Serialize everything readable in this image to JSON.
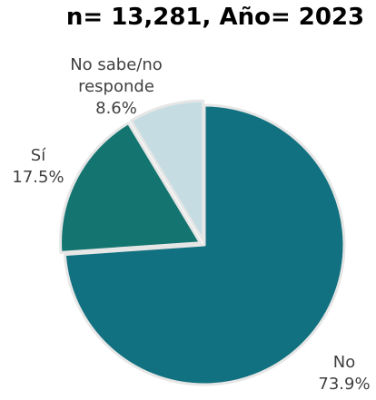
{
  "chart_data": {
    "type": "pie",
    "title": "n= 13,281, Año= 2023",
    "slices": [
      {
        "name": "No",
        "value": 73.9,
        "label": "73.9%",
        "color": "#127180"
      },
      {
        "name": "Sí",
        "value": 17.5,
        "label": "17.5%",
        "color": "#147570"
      },
      {
        "name": "No sabe/no responde",
        "value": 8.6,
        "label": "8.6%",
        "color": "#c5dde2"
      }
    ],
    "start_angle": "12 o'clock, clockwise",
    "edge_color": "#e6e6e6"
  },
  "labels": {
    "no_name": "No",
    "no_value": "73.9%",
    "si_name": "Sí",
    "si_value": "17.5%",
    "nosabe_name_line1": "No sabe/no",
    "nosabe_name_line2": "responde",
    "nosabe_value": "8.6%"
  }
}
